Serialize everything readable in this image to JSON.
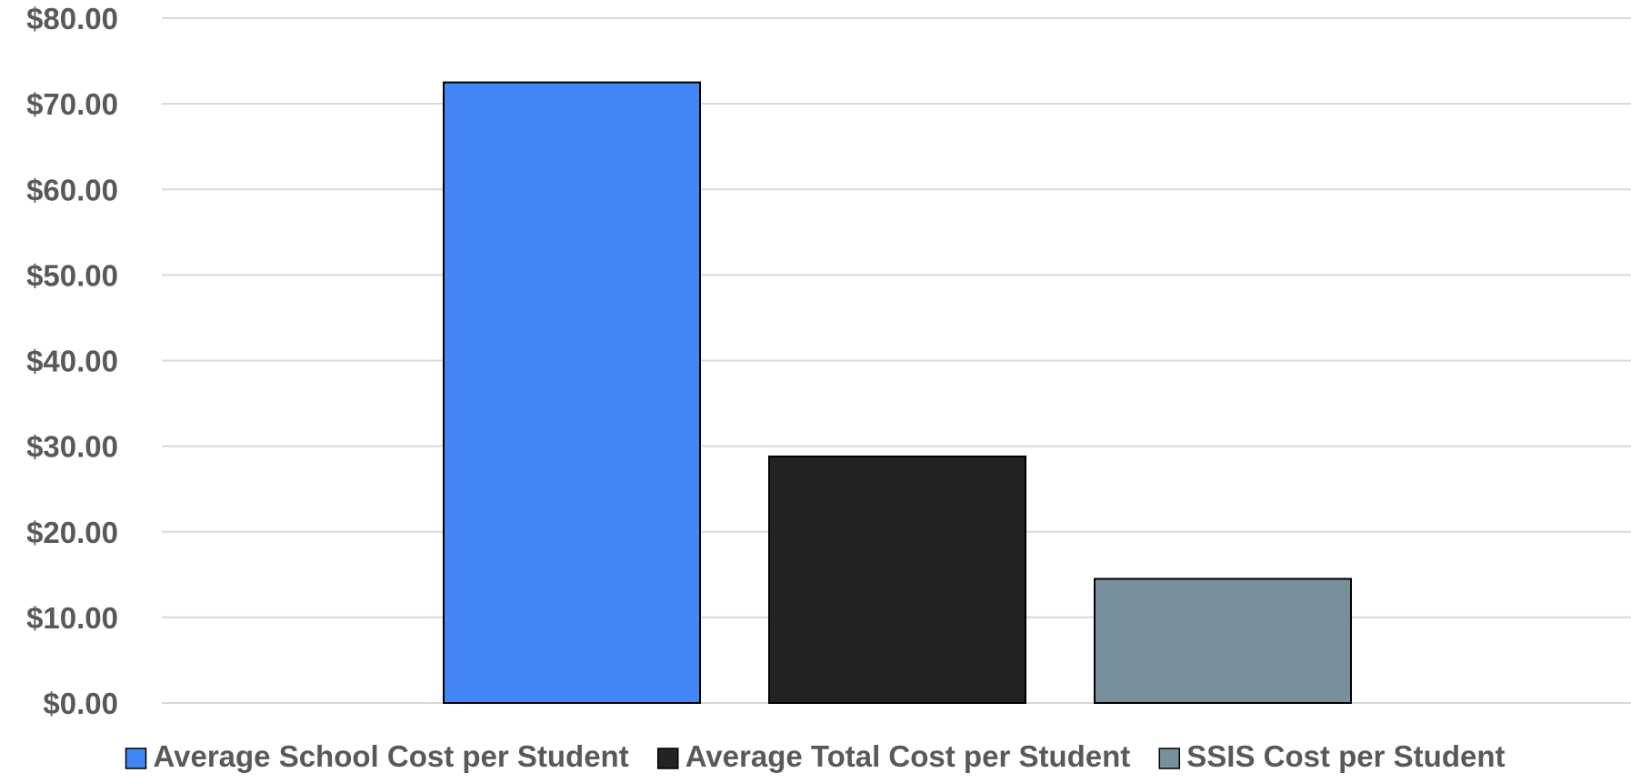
{
  "chart_data": {
    "type": "bar",
    "title": "",
    "xlabel": "",
    "ylabel": "",
    "ylim": [
      0,
      80
    ],
    "yticks": [
      0,
      10,
      20,
      30,
      40,
      50,
      60,
      70,
      80
    ],
    "ytick_labels": [
      "$0.00",
      "$10.00",
      "$20.00",
      "$30.00",
      "$40.00",
      "$50.00",
      "$60.00",
      "$70.00",
      "$80.00"
    ],
    "grid": true,
    "legend_position": "bottom",
    "categories": [
      ""
    ],
    "series": [
      {
        "name": "Average School Cost per Student",
        "values": [
          72.5
        ],
        "color": "#4285f4"
      },
      {
        "name": "Average Total Cost per Student",
        "values": [
          28.8
        ],
        "color": "#232323"
      },
      {
        "name": "SSIS Cost per Student",
        "values": [
          14.5
        ],
        "color": "#78909c"
      }
    ]
  }
}
